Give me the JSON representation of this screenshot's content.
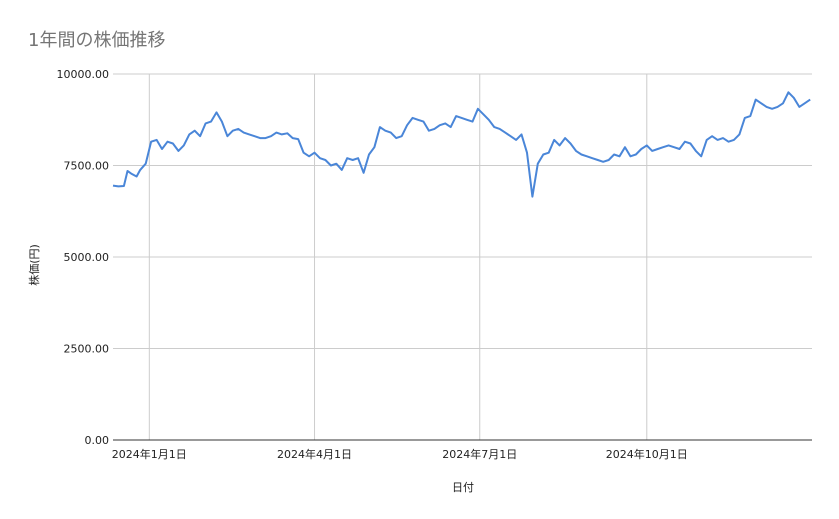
{
  "colors": {
    "series_line": "#4a86d8",
    "grid": "#cccccc",
    "axis": "#333333",
    "title": "#757575"
  },
  "chart_data": {
    "type": "line",
    "title": "1年間の株価推移",
    "xlabel": "日付",
    "ylabel": "株価(円)",
    "ylim": [
      0,
      10000
    ],
    "xlim": [
      "2023-12-12",
      "2024-12-31"
    ],
    "grid": true,
    "legend": "none",
    "y_ticks": [
      {
        "value": 0,
        "label": "0.00"
      },
      {
        "value": 2500,
        "label": "2500.00"
      },
      {
        "value": 5000,
        "label": "5000.00"
      },
      {
        "value": 7500,
        "label": "7500.00"
      },
      {
        "value": 10000,
        "label": "10000.00"
      }
    ],
    "x_ticks": [
      {
        "value": "2024-01-01",
        "label": "2024年1月1日"
      },
      {
        "value": "2024-04-01",
        "label": "2024年4月1日"
      },
      {
        "value": "2024-07-01",
        "label": "2024年7月1日"
      },
      {
        "value": "2024-10-01",
        "label": "2024年10月1日"
      }
    ],
    "series": [
      {
        "x": [
          "2023-12-12",
          "2023-12-15",
          "2023-12-18",
          "2023-12-20",
          "2023-12-22",
          "2023-12-25",
          "2023-12-27",
          "2023-12-30",
          "2024-01-02",
          "2024-01-05",
          "2024-01-08",
          "2024-01-11",
          "2024-01-14",
          "2024-01-17",
          "2024-01-20",
          "2024-01-23",
          "2024-01-26",
          "2024-01-29",
          "2024-02-01",
          "2024-02-04",
          "2024-02-07",
          "2024-02-10",
          "2024-02-13",
          "2024-02-16",
          "2024-02-19",
          "2024-02-22",
          "2024-02-25",
          "2024-02-28",
          "2024-03-02",
          "2024-03-05",
          "2024-03-08",
          "2024-03-11",
          "2024-03-14",
          "2024-03-17",
          "2024-03-20",
          "2024-03-23",
          "2024-03-26",
          "2024-03-29",
          "2024-04-01",
          "2024-04-04",
          "2024-04-07",
          "2024-04-10",
          "2024-04-13",
          "2024-04-16",
          "2024-04-19",
          "2024-04-22",
          "2024-04-25",
          "2024-04-28",
          "2024-05-01",
          "2024-05-04",
          "2024-05-07",
          "2024-05-10",
          "2024-05-13",
          "2024-05-16",
          "2024-05-19",
          "2024-05-22",
          "2024-05-25",
          "2024-05-28",
          "2024-05-31",
          "2024-06-03",
          "2024-06-06",
          "2024-06-09",
          "2024-06-12",
          "2024-06-15",
          "2024-06-18",
          "2024-06-21",
          "2024-06-24",
          "2024-06-27",
          "2024-06-30",
          "2024-07-03",
          "2024-07-06",
          "2024-07-09",
          "2024-07-12",
          "2024-07-15",
          "2024-07-18",
          "2024-07-21",
          "2024-07-24",
          "2024-07-27",
          "2024-07-30",
          "2024-08-02",
          "2024-08-05",
          "2024-08-08",
          "2024-08-11",
          "2024-08-14",
          "2024-08-17",
          "2024-08-20",
          "2024-08-23",
          "2024-08-26",
          "2024-08-29",
          "2024-09-01",
          "2024-09-04",
          "2024-09-07",
          "2024-09-10",
          "2024-09-13",
          "2024-09-16",
          "2024-09-19",
          "2024-09-22",
          "2024-09-25",
          "2024-09-28",
          "2024-10-01",
          "2024-10-04",
          "2024-10-07",
          "2024-10-10",
          "2024-10-13",
          "2024-10-16",
          "2024-10-19",
          "2024-10-22",
          "2024-10-25",
          "2024-10-28",
          "2024-10-31",
          "2024-11-03",
          "2024-11-06",
          "2024-11-09",
          "2024-11-12",
          "2024-11-15",
          "2024-11-18",
          "2024-11-21",
          "2024-11-24",
          "2024-11-27",
          "2024-11-30",
          "2024-12-03",
          "2024-12-06",
          "2024-12-09",
          "2024-12-12",
          "2024-12-15",
          "2024-12-18",
          "2024-12-21",
          "2024-12-24",
          "2024-12-27",
          "2024-12-30"
        ],
        "y": [
          6950,
          6930,
          6940,
          7350,
          7280,
          7200,
          7380,
          7550,
          8150,
          8200,
          7950,
          8150,
          8100,
          7900,
          8050,
          8350,
          8450,
          8300,
          8650,
          8700,
          8950,
          8700,
          8300,
          8450,
          8500,
          8400,
          8350,
          8300,
          8250,
          8250,
          8300,
          8400,
          8350,
          8380,
          8250,
          8220,
          7850,
          7750,
          7850,
          7700,
          7650,
          7500,
          7550,
          7380,
          7700,
          7650,
          7700,
          7300,
          7800,
          8000,
          8550,
          8450,
          8400,
          8250,
          8300,
          8600,
          8800,
          8750,
          8700,
          8450,
          8500,
          8600,
          8650,
          8550,
          8850,
          8800,
          8750,
          8700,
          9050,
          8900,
          8750,
          8550,
          8500,
          8400,
          8300,
          8200,
          8350,
          7850,
          6650,
          7550,
          7800,
          7850,
          8200,
          8050,
          8250,
          8100,
          7900,
          7800,
          7750,
          7700,
          7650,
          7600,
          7650,
          7800,
          7750,
          8000,
          7750,
          7800,
          7950,
          8050,
          7900,
          7950,
          8000,
          8050,
          8000,
          7950,
          8150,
          8100,
          7900,
          7750,
          8200,
          8300,
          8200,
          8250,
          8150,
          8200,
          8350,
          8800,
          8850,
          9300,
          9200,
          9100,
          9050,
          9100,
          9200,
          9500,
          9350,
          9100,
          9200,
          9300
        ]
      }
    ]
  }
}
